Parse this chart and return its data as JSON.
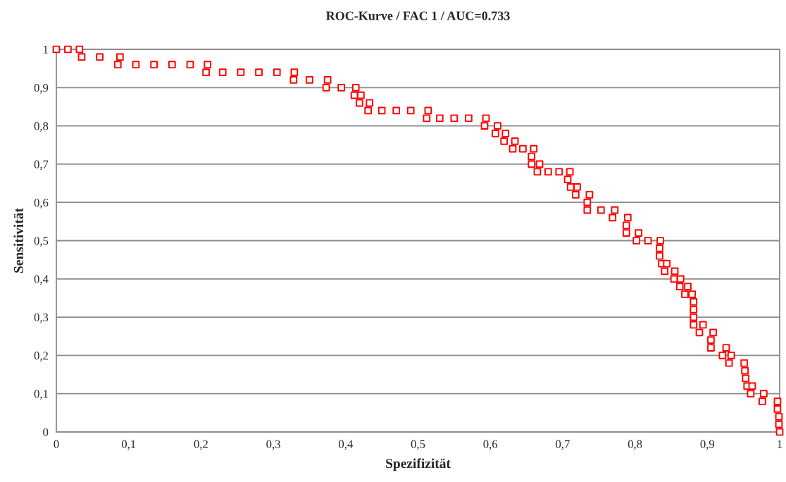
{
  "chart_data": {
    "type": "scatter",
    "title": "ROC-Kurve / FAC 1 / AUC=0.733",
    "xlabel": "Spezifizität",
    "ylabel": "Sensitivität",
    "marker": "square",
    "grid": "y",
    "xlim": [
      0,
      1
    ],
    "ylim": [
      0,
      1
    ],
    "xticks": [
      0,
      {
        "value": 0.1,
        "label": "0,1"
      },
      {
        "value": 0.2,
        "label": "0,2"
      },
      {
        "value": 0.3,
        "label": "0,3"
      },
      {
        "value": 0.4,
        "label": "0,4"
      },
      {
        "value": 0.5,
        "label": "0,5"
      },
      {
        "value": 0.6,
        "label": "0,6"
      },
      {
        "value": 0.7,
        "label": "0,7"
      },
      {
        "value": 0.8,
        "label": "0,8"
      },
      {
        "value": 0.9,
        "label": "0,9"
      },
      1
    ],
    "yticks": [
      0,
      {
        "value": 0.1,
        "label": "0,1"
      },
      {
        "value": 0.2,
        "label": "0,2"
      },
      {
        "value": 0.3,
        "label": "0,3"
      },
      {
        "value": 0.4,
        "label": "0,4"
      },
      {
        "value": 0.5,
        "label": "0,5"
      },
      {
        "value": 0.6,
        "label": "0,6"
      },
      {
        "value": 0.7,
        "label": "0,7"
      },
      {
        "value": 0.8,
        "label": "0,8"
      },
      {
        "value": 0.9,
        "label": "0,9"
      },
      1
    ],
    "series": [
      {
        "color": "#ff0000",
        "x": [
          0,
          0.016,
          0.032,
          0.035,
          0.06,
          0.088,
          0.085,
          0.11,
          0.135,
          0.16,
          0.185,
          0.209,
          0.207,
          0.23,
          0.255,
          0.28,
          0.305,
          0.329,
          0.328,
          0.35,
          0.375,
          0.373,
          0.394,
          0.414,
          0.412,
          0.421,
          0.419,
          0.433,
          0.431,
          0.45,
          0.47,
          0.49,
          0.514,
          0.512,
          0.53,
          0.55,
          0.57,
          0.594,
          0.592,
          0.61,
          0.607,
          0.621,
          0.619,
          0.634,
          0.631,
          0.645,
          0.66,
          0.657,
          0.657,
          0.668,
          0.665,
          0.68,
          0.695,
          0.71,
          0.707,
          0.711,
          0.72,
          0.718,
          0.737,
          0.734,
          0.734,
          0.753,
          0.772,
          0.769,
          0.79,
          0.788,
          0.788,
          0.805,
          0.802,
          0.818,
          0.835,
          0.834,
          0.834,
          0.837,
          0.844,
          0.841,
          0.855,
          0.854,
          0.863,
          0.862,
          0.873,
          0.869,
          0.879,
          0.881,
          0.881,
          0.881,
          0.881,
          0.894,
          0.889,
          0.908,
          0.905,
          0.905,
          0.926,
          0.921,
          0.933,
          0.93,
          0.951,
          0.952,
          0.953,
          0.955,
          0.962,
          0.96,
          0.978,
          0.976,
          0.997,
          0.997,
          0.999,
          0.999,
          1
        ],
        "values": [
          1,
          1,
          1,
          0.98,
          0.98,
          0.98,
          0.96,
          0.96,
          0.96,
          0.96,
          0.96,
          0.96,
          0.94,
          0.94,
          0.94,
          0.94,
          0.94,
          0.94,
          0.92,
          0.92,
          0.92,
          0.9,
          0.9,
          0.9,
          0.88,
          0.88,
          0.86,
          0.86,
          0.84,
          0.84,
          0.84,
          0.84,
          0.84,
          0.82,
          0.82,
          0.82,
          0.82,
          0.82,
          0.8,
          0.8,
          0.78,
          0.78,
          0.76,
          0.76,
          0.74,
          0.74,
          0.74,
          0.72,
          0.7,
          0.7,
          0.68,
          0.68,
          0.68,
          0.68,
          0.66,
          0.64,
          0.64,
          0.62,
          0.62,
          0.6,
          0.58,
          0.58,
          0.58,
          0.56,
          0.56,
          0.54,
          0.52,
          0.52,
          0.5,
          0.5,
          0.5,
          0.48,
          0.46,
          0.44,
          0.44,
          0.42,
          0.42,
          0.4,
          0.4,
          0.38,
          0.38,
          0.36,
          0.36,
          0.34,
          0.32,
          0.3,
          0.28,
          0.28,
          0.26,
          0.26,
          0.24,
          0.22,
          0.22,
          0.2,
          0.2,
          0.18,
          0.18,
          0.16,
          0.14,
          0.12,
          0.12,
          0.1,
          0.1,
          0.08,
          0.08,
          0.06,
          0.04,
          0.02,
          0
        ]
      }
    ]
  }
}
